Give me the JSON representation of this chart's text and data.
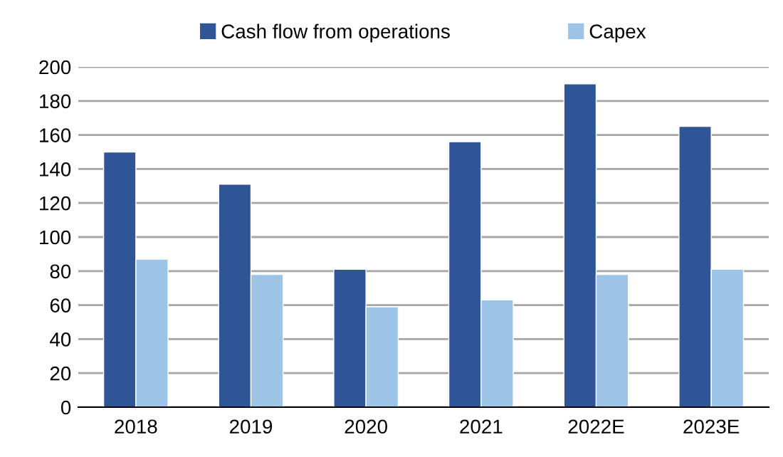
{
  "chart_data": {
    "type": "bar",
    "categories": [
      "2018",
      "2019",
      "2020",
      "2021",
      "2022E",
      "2023E"
    ],
    "series": [
      {
        "name": "Cash flow from operations",
        "color": "#2f5597",
        "values": [
          150,
          131,
          81,
          156,
          190,
          165
        ]
      },
      {
        "name": "Capex",
        "color": "#9dc3e6",
        "values": [
          87,
          78,
          59,
          63,
          78,
          81
        ]
      }
    ],
    "ylim": [
      0,
      200
    ],
    "yticks": [
      0,
      20,
      40,
      60,
      80,
      100,
      120,
      140,
      160,
      180,
      200
    ],
    "grid": "y",
    "legend": "top"
  }
}
